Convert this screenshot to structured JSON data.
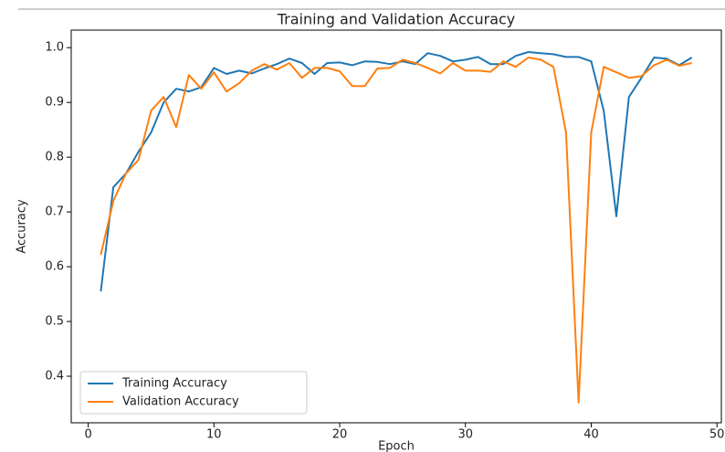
{
  "chart_data": {
    "type": "line",
    "title": "Training and Validation Accuracy",
    "x_label": "Epoch",
    "y_label": "Accuracy",
    "x": [
      1,
      2,
      3,
      4,
      5,
      6,
      7,
      8,
      9,
      10,
      11,
      12,
      13,
      14,
      15,
      16,
      17,
      18,
      19,
      20,
      21,
      22,
      23,
      24,
      25,
      26,
      27,
      28,
      29,
      30,
      31,
      32,
      33,
      34,
      35,
      36,
      37,
      38,
      39,
      40,
      41,
      42,
      43,
      44,
      45,
      46,
      47,
      48
    ],
    "series": [
      {
        "name": "Training Accuracy",
        "color": "#1f77b4",
        "values": [
          0.555,
          0.745,
          0.77,
          0.81,
          0.845,
          0.9,
          0.925,
          0.92,
          0.928,
          0.963,
          0.952,
          0.958,
          0.953,
          0.962,
          0.97,
          0.98,
          0.972,
          0.952,
          0.972,
          0.973,
          0.968,
          0.975,
          0.974,
          0.97,
          0.975,
          0.97,
          0.99,
          0.985,
          0.975,
          0.978,
          0.983,
          0.97,
          0.97,
          0.985,
          0.992,
          0.99,
          0.988,
          0.983,
          0.983,
          0.975,
          0.885,
          0.692,
          0.91,
          0.945,
          0.982,
          0.98,
          0.968,
          0.982
        ]
      },
      {
        "name": "Validation Accuracy",
        "color": "#ff7f0e",
        "values": [
          0.622,
          0.72,
          0.77,
          0.795,
          0.885,
          0.91,
          0.855,
          0.95,
          0.925,
          0.955,
          0.92,
          0.935,
          0.958,
          0.97,
          0.96,
          0.972,
          0.945,
          0.963,
          0.963,
          0.957,
          0.93,
          0.93,
          0.962,
          0.963,
          0.978,
          0.972,
          0.963,
          0.953,
          0.972,
          0.958,
          0.958,
          0.956,
          0.975,
          0.965,
          0.982,
          0.978,
          0.965,
          0.845,
          0.352,
          0.845,
          0.965,
          0.955,
          0.945,
          0.948,
          0.968,
          0.978,
          0.967,
          0.972
        ]
      }
    ],
    "xlim": [
      -1.35,
      50.35
    ],
    "xticks": [
      0,
      10,
      20,
      30,
      40,
      50
    ],
    "ylim": [
      0.315,
      1.032
    ],
    "yticks": [
      {
        "value": 1.0,
        "label": "1.0"
      },
      0.9,
      0.8,
      0.7,
      0.6,
      0.5,
      0.4
    ],
    "legend": "lower left",
    "grid": false
  }
}
